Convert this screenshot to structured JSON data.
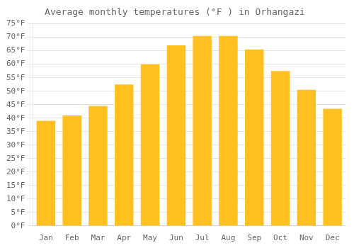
{
  "chart_data": {
    "type": "bar",
    "title": "Average monthly temperatures (°F ) in Orhangazi",
    "categories": [
      "Jan",
      "Feb",
      "Mar",
      "Apr",
      "May",
      "Jun",
      "Jul",
      "Aug",
      "Sep",
      "Oct",
      "Nov",
      "Dec"
    ],
    "values": [
      39,
      41,
      44.5,
      52.5,
      60,
      67,
      70.5,
      70.5,
      65.5,
      57.5,
      50.5,
      43.5
    ],
    "color": "#FFC020",
    "ylim": [
      0,
      75
    ],
    "yticks": [
      {
        "value": 0,
        "label": "0°F"
      },
      {
        "value": 5,
        "label": "5°F"
      },
      {
        "value": 10,
        "label": "10°F"
      },
      {
        "value": 15,
        "label": "15°F"
      },
      {
        "value": 20,
        "label": "20°F"
      },
      {
        "value": 25,
        "label": "25°F"
      },
      {
        "value": 30,
        "label": "30°F"
      },
      {
        "value": 35,
        "label": "35°F"
      },
      {
        "value": 40,
        "label": "40°F"
      },
      {
        "value": 45,
        "label": "45°F"
      },
      {
        "value": 50,
        "label": "50°F"
      },
      {
        "value": 55,
        "label": "55°F"
      },
      {
        "value": 60,
        "label": "60°F"
      },
      {
        "value": 65,
        "label": "65°F"
      },
      {
        "value": 70,
        "label": "70°F"
      },
      {
        "value": 75,
        "label": "75°F"
      }
    ],
    "grid": true
  }
}
